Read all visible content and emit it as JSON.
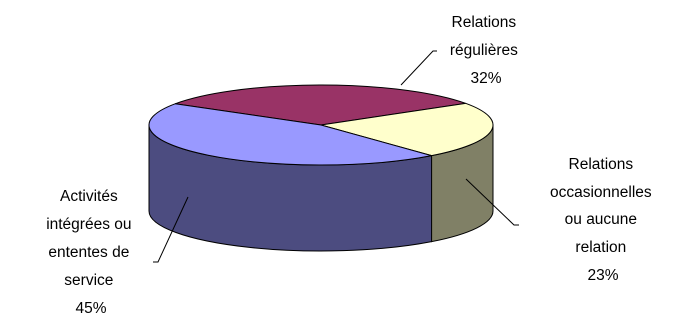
{
  "chart_data": {
    "type": "pie",
    "title": "",
    "style": "3d-exploded-none",
    "slices": [
      {
        "label_lines": [
          "Relations",
          "régulières"
        ],
        "value": 32,
        "pct_text": "32%",
        "color": "#993366",
        "side_color": "#5c1f3d"
      },
      {
        "label_lines": [
          "Relations",
          "occasionnelles",
          "ou aucune",
          "relation"
        ],
        "value": 23,
        "pct_text": "23%",
        "color": "#ffffcc",
        "side_color": "#808066"
      },
      {
        "label_lines": [
          "Activités",
          "intégrées ou",
          "ententes de",
          "service"
        ],
        "value": 45,
        "pct_text": "45%",
        "color": "#9999ff",
        "side_color": "#4c4c80"
      }
    ]
  }
}
